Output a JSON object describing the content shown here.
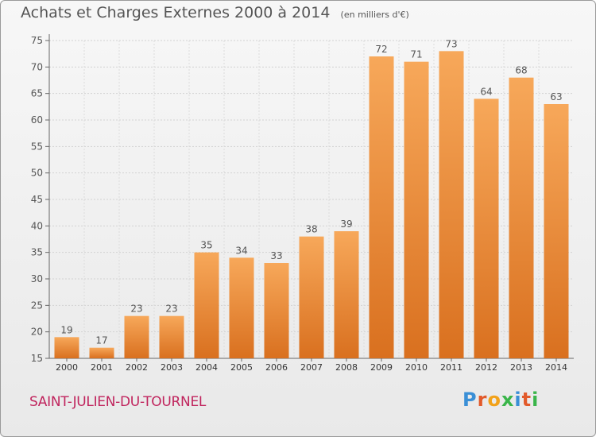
{
  "header": {
    "title": "Achats et Charges Externes 2000 à 2014",
    "unit": "(en milliers d'€)"
  },
  "footer": {
    "town": "SAINT-JULIEN-DU-TOURNEL",
    "brand": "Proxiti",
    "brand_colors": [
      "#3a8fd6",
      "#e25a2b",
      "#f2a21a",
      "#3ab54a",
      "#3a8fd6",
      "#e25a2b",
      "#3ab54a"
    ]
  },
  "colors": {
    "bar_light": "#f7a85a",
    "bar_dark": "#d9701f",
    "text": "#555555",
    "town": "#c0245d"
  },
  "chart_data": {
    "type": "bar",
    "title": "Achats et Charges Externes 2000 à 2014",
    "xlabel": "",
    "ylabel": "",
    "categories": [
      "2000",
      "2001",
      "2002",
      "2003",
      "2004",
      "2005",
      "2006",
      "2007",
      "2008",
      "2009",
      "2010",
      "2011",
      "2012",
      "2013",
      "2014"
    ],
    "values": [
      19,
      17,
      23,
      23,
      35,
      34,
      33,
      38,
      39,
      72,
      71,
      73,
      64,
      68,
      63
    ],
    "ylim": [
      15,
      75
    ],
    "yticks": [
      15,
      20,
      25,
      30,
      35,
      40,
      45,
      50,
      55,
      60,
      65,
      70,
      75
    ],
    "grid": true,
    "data_labels": true
  }
}
